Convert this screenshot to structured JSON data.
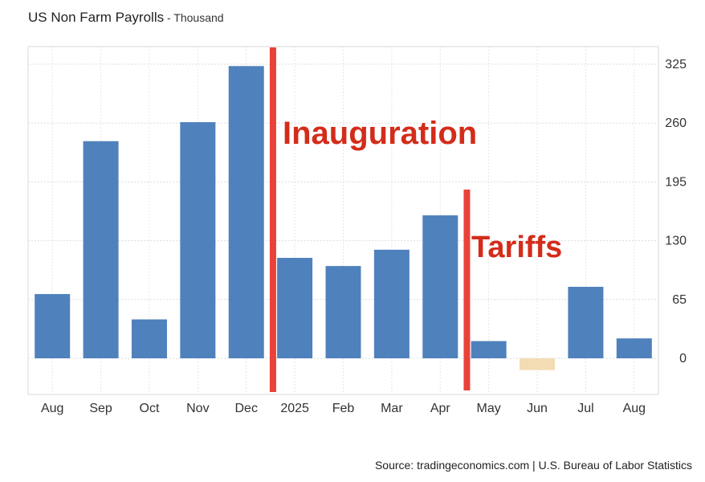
{
  "header": {
    "title": "US Non Farm Payrolls",
    "subtitle": " - Thousand"
  },
  "chart_data": {
    "type": "bar",
    "title": "US Non Farm Payrolls",
    "subtitle": "Thousand",
    "categories": [
      "Aug",
      "Sep",
      "Oct",
      "Nov",
      "Dec",
      "2025",
      "Feb",
      "Mar",
      "Apr",
      "May",
      "Jun",
      "Jul",
      "Aug"
    ],
    "values": [
      71,
      240,
      43,
      261,
      323,
      111,
      102,
      120,
      158,
      19,
      -13,
      79,
      22
    ],
    "ylim": [
      -40,
      340
    ],
    "yticks": [
      0,
      65,
      130,
      195,
      260,
      325
    ],
    "y_axis_side": "right",
    "grid": true,
    "bar_color": "#4f81bd",
    "negative_bar_color": "#f3dcb4",
    "annotations": [
      {
        "text": "Inauguration",
        "after_category_index": 4,
        "color": "#e8423a"
      },
      {
        "text": "Tariffs",
        "after_category_index": 8,
        "color": "#e8423a"
      }
    ]
  },
  "footer": {
    "source": "Source: tradingeconomics.com | U.S. Bureau of Labor Statistics"
  }
}
